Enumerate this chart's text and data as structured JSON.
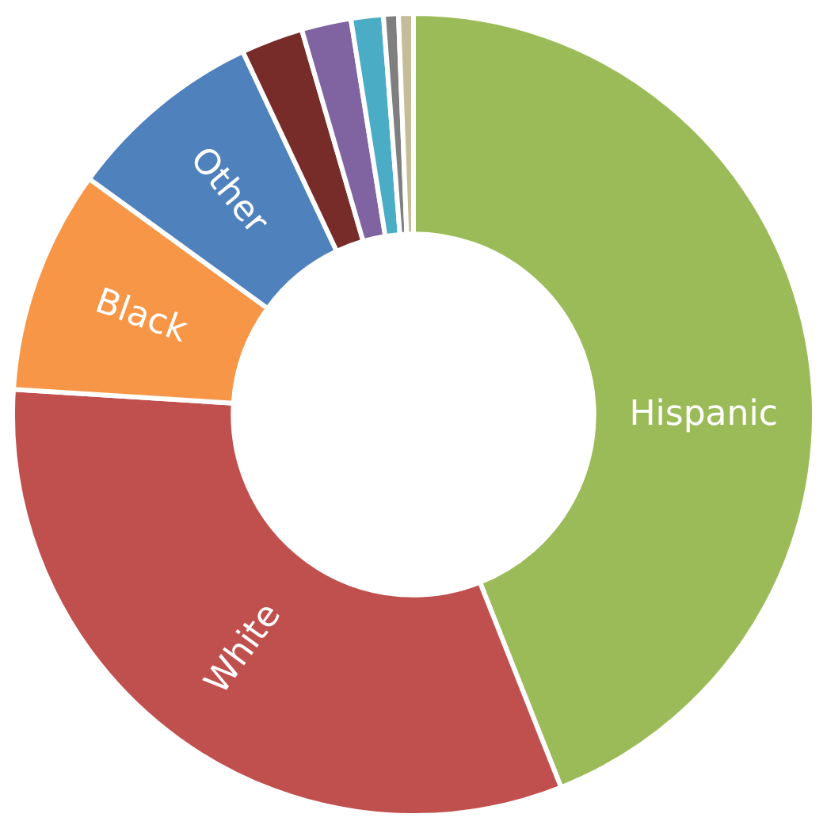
{
  "chart_data": {
    "type": "donut",
    "categories": [
      "Hispanic",
      "White",
      "Black",
      "Other",
      null,
      null,
      null,
      null,
      null
    ],
    "values": [
      44,
      32,
      9,
      8,
      2.5,
      2,
      1.3,
      0.6,
      0.6
    ],
    "colors": [
      "#9bbb59",
      "#c0504d",
      "#f79646",
      "#4f81bd",
      "#772c2a",
      "#8064a2",
      "#4bacc6",
      "#7f7f7f",
      "#c4bd97"
    ],
    "legend": false
  }
}
